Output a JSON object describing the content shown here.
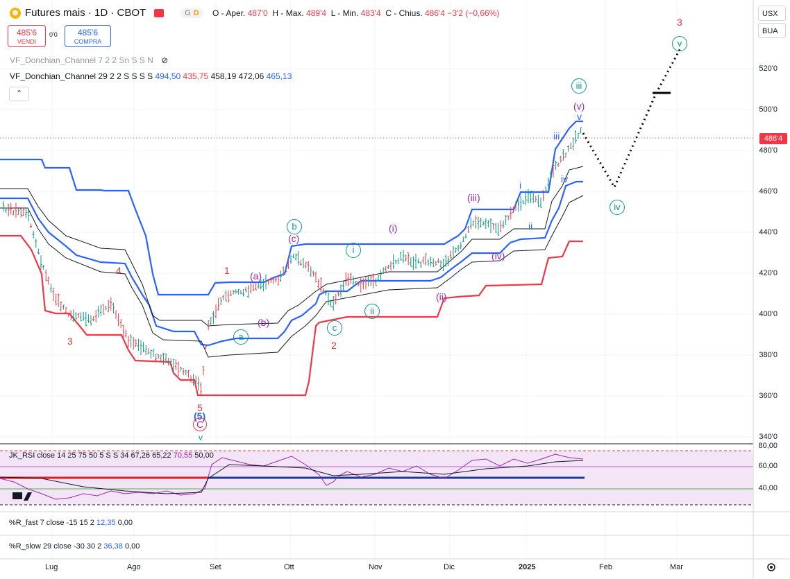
{
  "header": {
    "symbol": "Futures mais · 1D · CBOT",
    "logo_icon": "corn-coin-icon",
    "pill_g": "G",
    "pill_d": "D",
    "ohlc": {
      "o_label": "O - Aper.",
      "o_val": "487'0",
      "h_label": "H - Max.",
      "h_val": "489'4",
      "l_label": "L - Min.",
      "l_val": "483'4",
      "c_label": "C - Chius.",
      "c_val": "486'4",
      "change": "−3'2 (−0,66%)"
    }
  },
  "trade": {
    "sell_price": "485'6",
    "sell_label": "VENDI",
    "spread": "0'0",
    "buy_price": "485'6",
    "buy_label": "COMPRA"
  },
  "indicators": {
    "donchian1": "VF_Donchian_Channel 7 2 2 Sn S S N",
    "donchian2_name": "VF_Donchian_Channel 29 2 2 S S S S",
    "donchian2_v1": "494,50",
    "donchian2_v2": "435,75",
    "donchian2_v3": "458,19",
    "donchian2_v4": "472,06",
    "donchian2_v5": "465,13"
  },
  "rsi": {
    "name": "JK_RSI close 14 25 75 50 5 S S 34",
    "v1": "67,26",
    "v2": "65,22",
    "v3": "70,55",
    "v4": "50,00",
    "axis": [
      "80,00",
      "60,00",
      "40,00"
    ]
  },
  "rfast": {
    "name": "%R_fast 7 close -15 15 2",
    "v1": "12,35",
    "v2": "0,00"
  },
  "rslow": {
    "name": "%R_slow 29 close -30 30 2",
    "v1": "36,38",
    "v2": "0,00"
  },
  "price_axis": {
    "labels": [
      "520'0",
      "500'0",
      "480'0",
      "460'0",
      "440'0",
      "420'0",
      "400'0",
      "380'0",
      "360'0",
      "340'0"
    ],
    "last_price": "486'4",
    "currency": "USX",
    "session": "BUA"
  },
  "time_axis": [
    "Lug",
    "Ago",
    "Set",
    "Ott",
    "Nov",
    "Dic",
    "2025",
    "Feb",
    "Mar"
  ],
  "waves": {
    "w1": "1",
    "w2": "2",
    "w3": "3",
    "w4": "4",
    "w5": "5",
    "w3_top": "3",
    "a": "(a)",
    "b": "(b)",
    "c": "(c)",
    "ci": "(i)",
    "cii": "(ii)",
    "ciii": "(iii)",
    "civ": "(iv)",
    "cv": "(v)",
    "i": "i",
    "ii": "ii",
    "iii": "iii",
    "iv": "iv",
    "v": "v",
    "ga": "a",
    "gb": "b",
    "gc": "c",
    "gi": "i",
    "gii": "ii",
    "giii": "iii",
    "giv": "iv",
    "gv": "v",
    "bottom5": "(5)",
    "bottomC": "C",
    "bottomV": "v"
  },
  "colors": {
    "up": "#089981",
    "down": "#f23645",
    "donchian_blue": "#2962ff",
    "donchian_red": "#f23645",
    "rsi_band": "#f3e5f5"
  },
  "settings_icon": "gear-icon",
  "tv_logo": "TV"
}
